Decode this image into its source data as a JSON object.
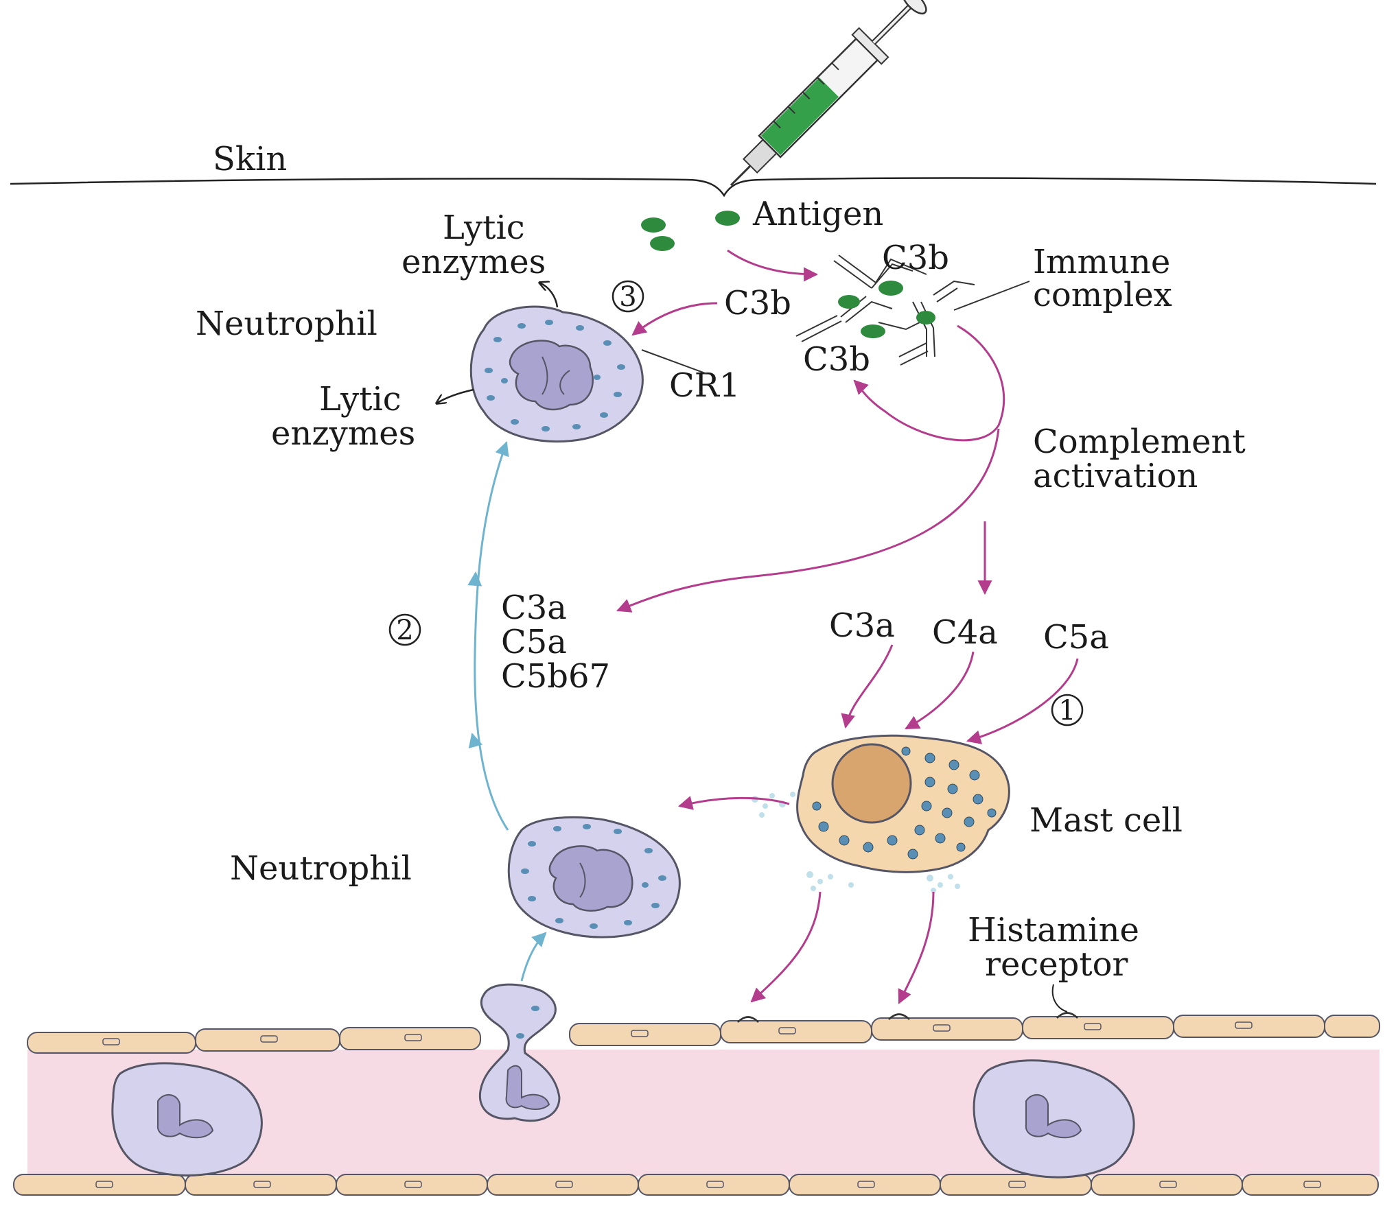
{
  "labels": {
    "skin": "Skin",
    "antigen": "Antigen",
    "lytic_top_1": "Lytic",
    "lytic_top_2": "enzymes",
    "step3": "3",
    "neutrophil_top": "Neutrophil",
    "c3b_left": "C3b",
    "c3b_top": "C3b",
    "c3b_bottom": "C3b",
    "immune_complex_1": "Immune",
    "immune_complex_2": "complex",
    "cr1": "CR1",
    "lytic_bottom_1": "Lytic",
    "lytic_bottom_2": "enzymes",
    "complement_activation_1": "Complement",
    "complement_activation_2": "activation",
    "step2": "2",
    "c3a_left": "C3a",
    "c5a_left": "C5a",
    "c5b67": "C5b67",
    "c3a_right": "C3a",
    "c4a": "C4a",
    "c5a_right": "C5a",
    "step1": "1",
    "mast_cell": "Mast cell",
    "neutrophil_bottom": "Neutrophil",
    "histamine_receptor_1": "Histamine",
    "histamine_receptor_2": "receptor"
  },
  "colors": {
    "pathway_arrow": "#b43c8c",
    "migration_arrow": "#6fb4cf",
    "antigen": "#2e8b3e",
    "cell_fill": "#d4d2ec",
    "cell_outline": "#555566",
    "granule": "#5a8fb5",
    "mast_cell_fill": "#f4d7ad",
    "mast_nucleus": "#d9a56e",
    "vessel_lumen": "#f6dbe4",
    "endothelium": "#f3d7b2"
  }
}
